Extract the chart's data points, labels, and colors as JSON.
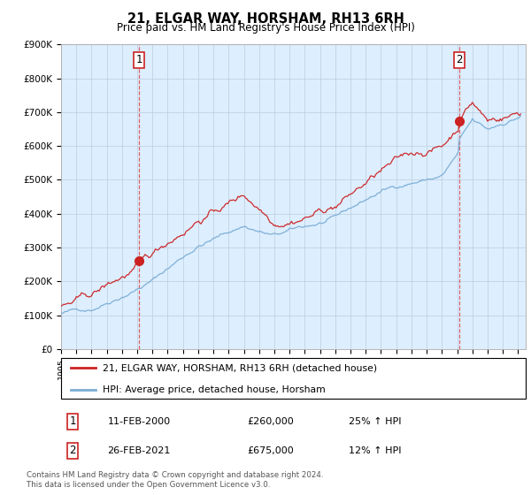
{
  "title": "21, ELGAR WAY, HORSHAM, RH13 6RH",
  "subtitle": "Price paid vs. HM Land Registry's House Price Index (HPI)",
  "ylabel_ticks": [
    "£0",
    "£100K",
    "£200K",
    "£300K",
    "£400K",
    "£500K",
    "£600K",
    "£700K",
    "£800K",
    "£900K"
  ],
  "ylim": [
    0,
    900000
  ],
  "xlim_start": 1995.0,
  "xlim_end": 2025.5,
  "sale1_x": 2000.12,
  "sale1_y": 260000,
  "sale2_x": 2021.15,
  "sale2_y": 675000,
  "legend_line1": "21, ELGAR WAY, HORSHAM, RH13 6RH (detached house)",
  "legend_line2": "HPI: Average price, detached house, Horsham",
  "table_row1": [
    "1",
    "11-FEB-2000",
    "£260,000",
    "25% ↑ HPI"
  ],
  "table_row2": [
    "2",
    "26-FEB-2021",
    "£675,000",
    "12% ↑ HPI"
  ],
  "footnote": "Contains HM Land Registry data © Crown copyright and database right 2024.\nThis data is licensed under the Open Government Licence v3.0.",
  "hpi_color": "#7aadd4",
  "price_color": "#cc2222",
  "vline_color": "#dd4444",
  "plot_bg_color": "#ddeeff",
  "background_color": "#ffffff",
  "grid_color": "#bbccdd"
}
